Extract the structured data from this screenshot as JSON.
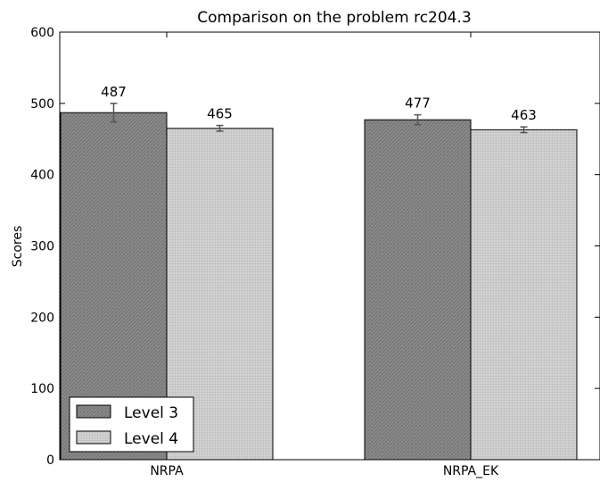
{
  "chart_data": {
    "type": "bar",
    "title": "Comparison on the problem rc204.3",
    "xlabel": "",
    "ylabel": "Scores",
    "ylim": [
      0,
      600
    ],
    "yticks": [
      0,
      100,
      200,
      300,
      400,
      500,
      600
    ],
    "categories": [
      "NRPA",
      "NRPA_EK"
    ],
    "series": [
      {
        "name": "Level 3",
        "values": [
          487,
          477
        ],
        "errors": [
          13,
          7
        ],
        "labels": [
          "487",
          "477"
        ],
        "color": "#8c8c8c"
      },
      {
        "name": "Level 4",
        "values": [
          465,
          463
        ],
        "errors": [
          4,
          4
        ],
        "labels": [
          "465",
          "463"
        ],
        "color": "#c8c8c8"
      }
    ],
    "legend": "lower-left",
    "grid": false
  },
  "colors": {
    "level3_fill": "#8c8c8c",
    "level4_fill": "#c8c8c8",
    "errorbar": "#555555"
  }
}
